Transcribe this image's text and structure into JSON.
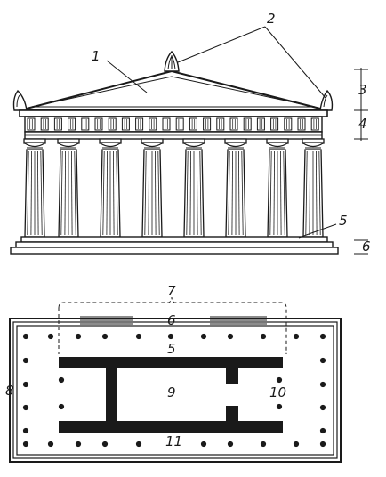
{
  "elevation_labels": {
    "l1": "1",
    "l2": "2",
    "l3": "3",
    "l4": "4",
    "l5": "5",
    "l6": "6"
  },
  "plan_labels": {
    "l7": "7",
    "l6": "6",
    "l5": "5",
    "l8": "8",
    "l9": "9",
    "l10": "10",
    "l11": "11"
  },
  "colors": {
    "ink": "#1a1a1a",
    "paper": "#ffffff"
  }
}
